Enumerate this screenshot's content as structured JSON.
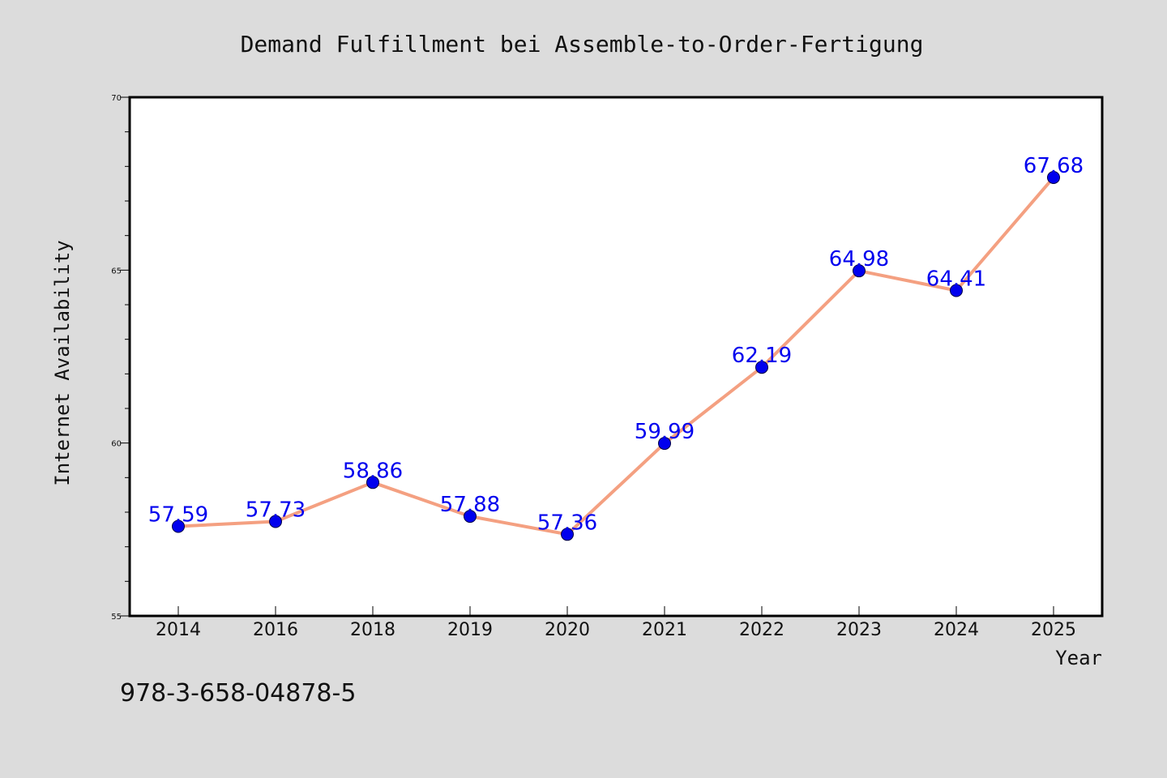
{
  "chart_data": {
    "type": "line",
    "title": "Demand Fulfillment bei Assemble-to-Order-Fertigung",
    "xlabel": "Year",
    "ylabel": "Internet Availability",
    "categories": [
      "2014",
      "2016",
      "2018",
      "2019",
      "2020",
      "2021",
      "2022",
      "2023",
      "2024",
      "2025"
    ],
    "series": [
      {
        "values": [
          57.59,
          57.73,
          58.86,
          57.88,
          57.36,
          59.99,
          62.19,
          64.98,
          64.41,
          67.68
        ],
        "data_labels": [
          "57.59",
          "57.73",
          "58.86",
          "57.88",
          "57.36",
          "59.99",
          "62.19",
          "64.98",
          "64.41",
          "67.68"
        ]
      }
    ],
    "ylim": [
      55,
      70
    ],
    "y_major_ticks": [
      55,
      60,
      65,
      70
    ],
    "y_tick_labels": [
      "55",
      "60",
      "65",
      "70"
    ],
    "y_minor_step": 1,
    "grid": false,
    "line_color": "#f4a081",
    "marker_color": "#0000ee",
    "label_color": "#0000ee"
  },
  "footnote": "978-3-658-04878-5"
}
